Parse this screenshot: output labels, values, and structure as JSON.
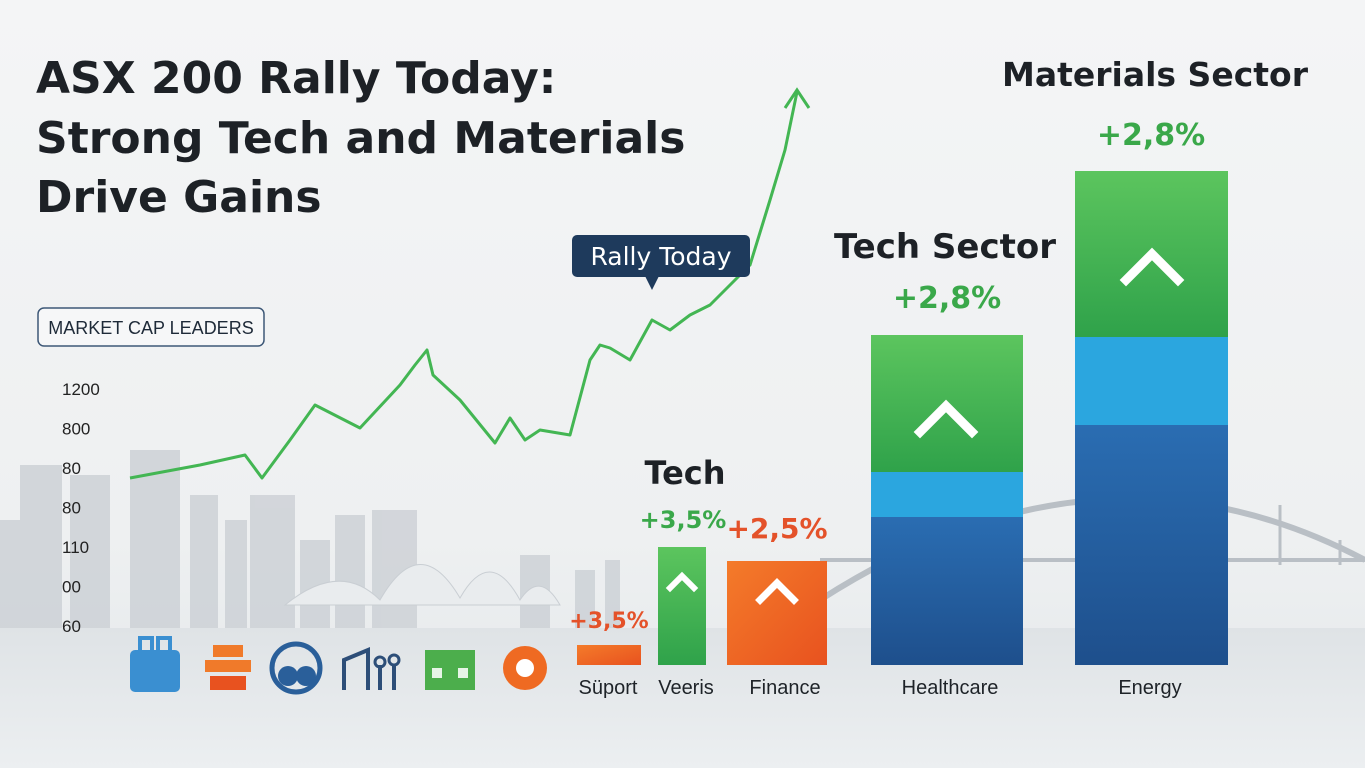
{
  "title": [
    "ASX 200 Rally Today:",
    "Strong Tech and Materials",
    "Drive Gains"
  ],
  "badge": "MARKET CAP LEADERS",
  "callout": "Rally Today",
  "axis_labels": [
    "1200",
    "800",
    "80",
    "80",
    "110",
    "00",
    "60"
  ],
  "bars": [
    {
      "label": "Süport",
      "change": "+3,5%"
    },
    {
      "label": "Veeris",
      "change": "+3,5%",
      "heading": "Tech"
    },
    {
      "label": "Finance",
      "change": "+2,5%"
    },
    {
      "label": "Healthcare",
      "change": "+2,8%",
      "heading": "Tech Sector"
    },
    {
      "label": "Energy",
      "change": "+2,8%",
      "heading": "Materials Sector"
    }
  ]
}
